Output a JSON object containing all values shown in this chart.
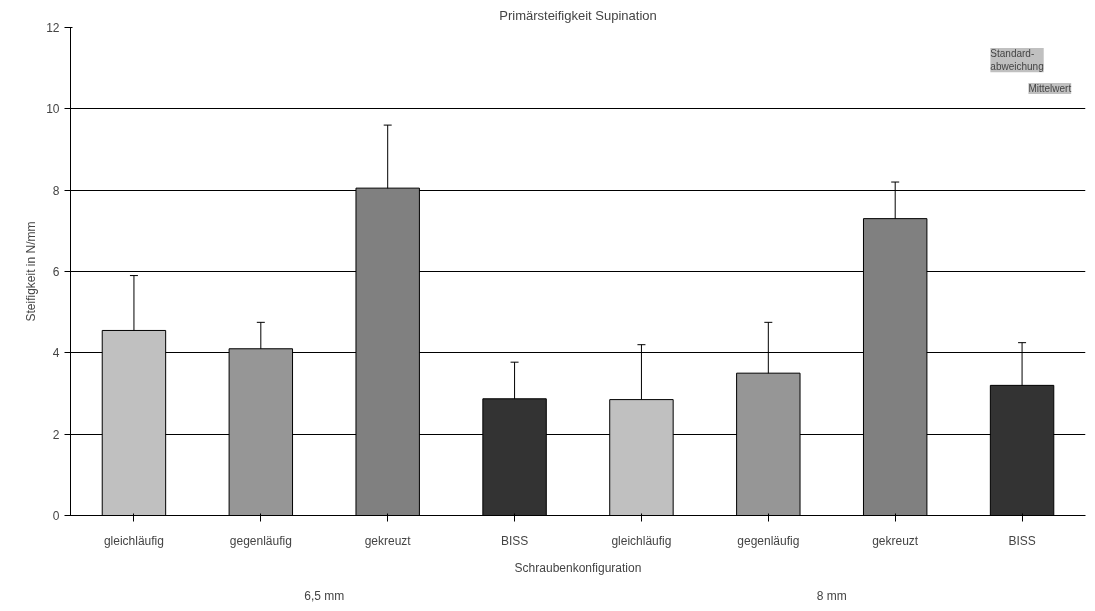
{
  "chart_data": {
    "type": "bar",
    "title": "Primärsteifigkeit Supination",
    "xlabel": "Schraubenkonfiguration",
    "ylabel": "Steifigkeit in N/mm",
    "categories": [
      "gleichläufig",
      "gegenläufig",
      "gekreuzt",
      "BISS",
      "gleichläufig",
      "gegenläufig",
      "gekreuzt",
      "BISS"
    ],
    "values": [
      4.55,
      4.1,
      8.05,
      2.87,
      2.85,
      3.5,
      7.3,
      3.2
    ],
    "colors": [
      "#c0c0c0",
      "#969696",
      "#808080",
      "#333333",
      "#c0c0c0",
      "#969696",
      "#808080",
      "#333333"
    ],
    "errors": [
      1.35,
      0.65,
      1.55,
      0.9,
      1.35,
      1.25,
      0.9,
      1.05
    ],
    "ylim": [
      0,
      12
    ],
    "yticks": [
      0,
      2,
      4,
      6,
      8,
      10,
      12
    ],
    "grid": "y",
    "annotations": [
      "6,5 mm",
      "8 mm",
      "Standard-\nabweichung",
      "Mittelwert"
    ]
  }
}
